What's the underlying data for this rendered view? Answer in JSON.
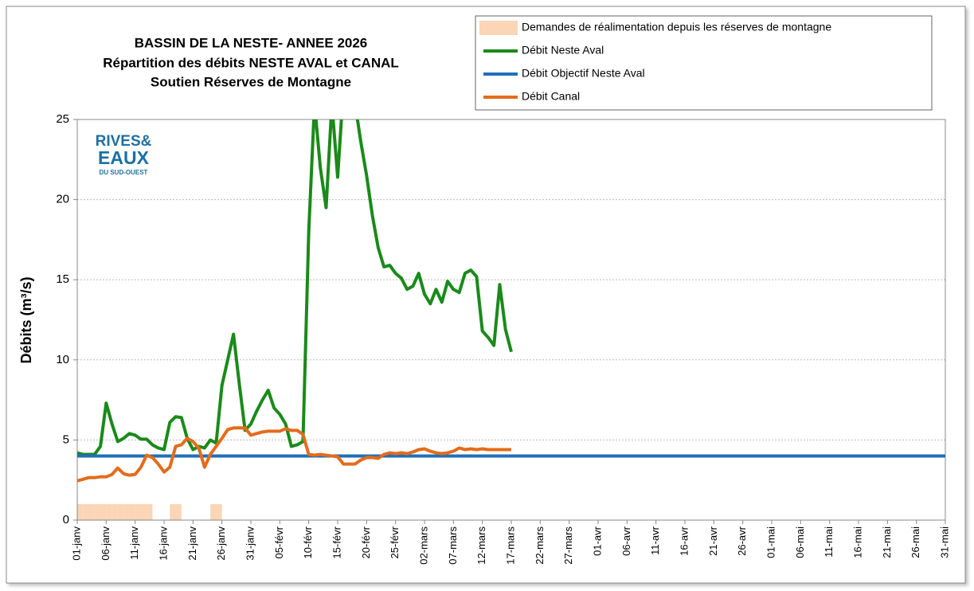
{
  "chart_data": {
    "type": "line",
    "title": [
      "BASSIN DE LA NESTE- ANNEE 2026",
      "Répartition des débits NESTE AVAL et CANAL",
      "Soutien Réserves de Montagne"
    ],
    "y_label": "Débits (m³/s)",
    "logo": [
      "RIVES&",
      "EAUX",
      "DU SUD-OUEST"
    ],
    "ylim": [
      0,
      25
    ],
    "yticks": [
      0,
      5,
      10,
      15,
      20,
      25
    ],
    "grid": true,
    "categories": [
      "01-janv",
      null,
      null,
      null,
      null,
      "06-janv",
      null,
      null,
      null,
      null,
      "11-janv",
      null,
      null,
      null,
      null,
      "16-janv",
      null,
      null,
      null,
      null,
      "21-janv",
      null,
      null,
      null,
      null,
      "26-janv",
      null,
      null,
      null,
      null,
      "31-janv",
      null,
      null,
      null,
      null,
      "05-févr",
      null,
      null,
      null,
      null,
      "10-févr",
      null,
      null,
      null,
      null,
      "15-févr",
      null,
      null,
      null,
      null,
      "20-févr",
      null,
      null,
      null,
      null,
      "25-févr",
      null,
      null,
      null,
      null,
      "02-mars",
      null,
      null,
      null,
      null,
      "07-mars",
      null,
      null,
      null,
      null,
      "12-mars",
      null,
      null,
      null,
      null,
      "17-mars",
      null,
      null,
      null,
      null,
      "22-mars",
      null,
      null,
      null,
      null,
      "27-mars",
      null,
      null,
      null,
      null,
      "01-avr",
      null,
      null,
      null,
      null,
      "06-avr",
      null,
      null,
      null,
      null,
      "11-avr",
      null,
      null,
      null,
      null,
      "16-avr",
      null,
      null,
      null,
      null,
      "21-avr",
      null,
      null,
      null,
      null,
      "26-avr",
      null,
      null,
      null,
      null,
      "01-mai",
      null,
      null,
      null,
      null,
      "06-mai",
      null,
      null,
      null,
      null,
      "11-mai",
      null,
      null,
      null,
      null,
      "16-mai",
      null,
      null,
      null,
      null,
      "21-mai",
      null,
      null,
      null,
      null,
      "26-mai",
      null,
      null,
      null,
      null,
      "31-mai"
    ],
    "series": [
      {
        "name": "Demandes de réalimentation depuis les réserves de montagne",
        "kind": "bar",
        "color": "#fbd5b5",
        "values": [
          1,
          1,
          1,
          1,
          1,
          1,
          1,
          1,
          1,
          1,
          1,
          1,
          1,
          null,
          null,
          null,
          1,
          1,
          null,
          null,
          null,
          null,
          null,
          1,
          1,
          null,
          null,
          null,
          null,
          null,
          null,
          null,
          null,
          null,
          null,
          null,
          null,
          null,
          null,
          null,
          null,
          null,
          null,
          null,
          null,
          null,
          null,
          null,
          null,
          null,
          null,
          null,
          null,
          null,
          null,
          null,
          null,
          null,
          null,
          null,
          null,
          null,
          null,
          null,
          null,
          null,
          null,
          null,
          null,
          null,
          null,
          null,
          null,
          null,
          null,
          null,
          null,
          null,
          null,
          null,
          null,
          null,
          null,
          null,
          null,
          null,
          null,
          null,
          null,
          null,
          null,
          null,
          null,
          null,
          null,
          null,
          null,
          null,
          null,
          null,
          null,
          null,
          null,
          null,
          null,
          null,
          null,
          null,
          null,
          null,
          null,
          null,
          null,
          null,
          null,
          null,
          null,
          null,
          null,
          null,
          null,
          null,
          null,
          null,
          null,
          null,
          null,
          null,
          null,
          null,
          null,
          null,
          null,
          null,
          null,
          null,
          null,
          null,
          null,
          null,
          null,
          null,
          null,
          null,
          null,
          null,
          null,
          null,
          null,
          null,
          null
        ]
      },
      {
        "name": "Débit Neste Aval",
        "kind": "line",
        "color": "#1a8a1a",
        "values": [
          4.2,
          4.1,
          4.1,
          4.1,
          4.6,
          7.3,
          6.0,
          4.9,
          5.1,
          5.4,
          5.3,
          5.05,
          5.05,
          4.7,
          4.5,
          4.4,
          6.1,
          6.45,
          6.4,
          5.1,
          4.4,
          4.6,
          4.5,
          5.0,
          4.8,
          8.4,
          10.0,
          11.6,
          8.5,
          5.6,
          6.0,
          6.8,
          7.5,
          8.1,
          7.0,
          6.6,
          6.0,
          4.6,
          4.7,
          4.9,
          18.0,
          26,
          22.0,
          19.5,
          26,
          21.4,
          27,
          28,
          26,
          23.6,
          21.5,
          19.0,
          17.0,
          15.8,
          15.9,
          15.4,
          15.1,
          14.4,
          14.6,
          15.4,
          14.1,
          13.5,
          14.4,
          13.6,
          14.9,
          14.4,
          14.2,
          15.4,
          15.6,
          15.2,
          11.8,
          11.4,
          10.9,
          14.7,
          11.9,
          10.5,
          null,
          null,
          null,
          null,
          null,
          null,
          null,
          null,
          null,
          null,
          null,
          null,
          null,
          null,
          null,
          null,
          null,
          null,
          null,
          null,
          null,
          null,
          null,
          null,
          null,
          null,
          null,
          null,
          null,
          null,
          null,
          null,
          null,
          null,
          null,
          null,
          null,
          null,
          null,
          null,
          null,
          null,
          null,
          null,
          null,
          null,
          null,
          null,
          null,
          null,
          null,
          null,
          null,
          null,
          null,
          null,
          null,
          null,
          null,
          null,
          null,
          null,
          null,
          null,
          null,
          null,
          null,
          null,
          null,
          null,
          null,
          null,
          null,
          null,
          null
        ]
      },
      {
        "name": "Débit Objectif Neste Aval",
        "kind": "line",
        "color": "#1f6fb8",
        "values": [
          4,
          4,
          4,
          4,
          4,
          4,
          4,
          4,
          4,
          4,
          4,
          4,
          4,
          4,
          4,
          4,
          4,
          4,
          4,
          4,
          4,
          4,
          4,
          4,
          4,
          4,
          4,
          4,
          4,
          4,
          4,
          4,
          4,
          4,
          4,
          4,
          4,
          4,
          4,
          4,
          4,
          4,
          4,
          4,
          4,
          4,
          4,
          4,
          4,
          4,
          4,
          4,
          4,
          4,
          4,
          4,
          4,
          4,
          4,
          4,
          4,
          4,
          4,
          4,
          4,
          4,
          4,
          4,
          4,
          4,
          4,
          4,
          4,
          4,
          4,
          4,
          4,
          4,
          4,
          4,
          4,
          4,
          4,
          4,
          4,
          4,
          4,
          4,
          4,
          4,
          4,
          4,
          4,
          4,
          4,
          4,
          4,
          4,
          4,
          4,
          4,
          4,
          4,
          4,
          4,
          4,
          4,
          4,
          4,
          4,
          4,
          4,
          4,
          4,
          4,
          4,
          4,
          4,
          4,
          4,
          4,
          4,
          4,
          4,
          4,
          4,
          4,
          4,
          4,
          4,
          4,
          4,
          4,
          4,
          4,
          4,
          4,
          4,
          4,
          4,
          4,
          4,
          4,
          4,
          4,
          4,
          4,
          4,
          4,
          4,
          4
        ]
      },
      {
        "name": "Débit Canal",
        "kind": "line",
        "color": "#e36c1c",
        "values": [
          2.45,
          2.55,
          2.65,
          2.65,
          2.7,
          2.7,
          2.85,
          3.25,
          2.9,
          2.8,
          2.85,
          3.3,
          4.05,
          3.9,
          3.5,
          3.0,
          3.3,
          4.6,
          4.7,
          5.1,
          4.9,
          4.5,
          3.3,
          4.1,
          4.6,
          5.1,
          5.65,
          5.75,
          5.75,
          5.75,
          5.3,
          5.4,
          5.5,
          5.55,
          5.55,
          5.55,
          5.7,
          5.6,
          5.6,
          5.35,
          4.1,
          4.05,
          4.1,
          4.05,
          4.0,
          3.95,
          3.5,
          3.5,
          3.5,
          3.75,
          3.9,
          3.9,
          3.85,
          4.1,
          4.2,
          4.15,
          4.2,
          4.15,
          4.25,
          4.4,
          4.45,
          4.3,
          4.2,
          4.15,
          4.2,
          4.3,
          4.5,
          4.4,
          4.45,
          4.4,
          4.45,
          4.4,
          4.4,
          4.4,
          4.4,
          4.4,
          null,
          null,
          null,
          null,
          null,
          null,
          null,
          null,
          null,
          null,
          null,
          null,
          null,
          null,
          null,
          null,
          null,
          null,
          null,
          null,
          null,
          null,
          null,
          null,
          null,
          null,
          null,
          null,
          null,
          null,
          null,
          null,
          null,
          null,
          null,
          null,
          null,
          null,
          null,
          null,
          null,
          null,
          null,
          null,
          null,
          null,
          null,
          null,
          null,
          null,
          null,
          null,
          null,
          null,
          null,
          null,
          null,
          null,
          null,
          null,
          null,
          null,
          null,
          null,
          null,
          null,
          null,
          null,
          null,
          null,
          null,
          null,
          null,
          null,
          null
        ]
      }
    ]
  }
}
